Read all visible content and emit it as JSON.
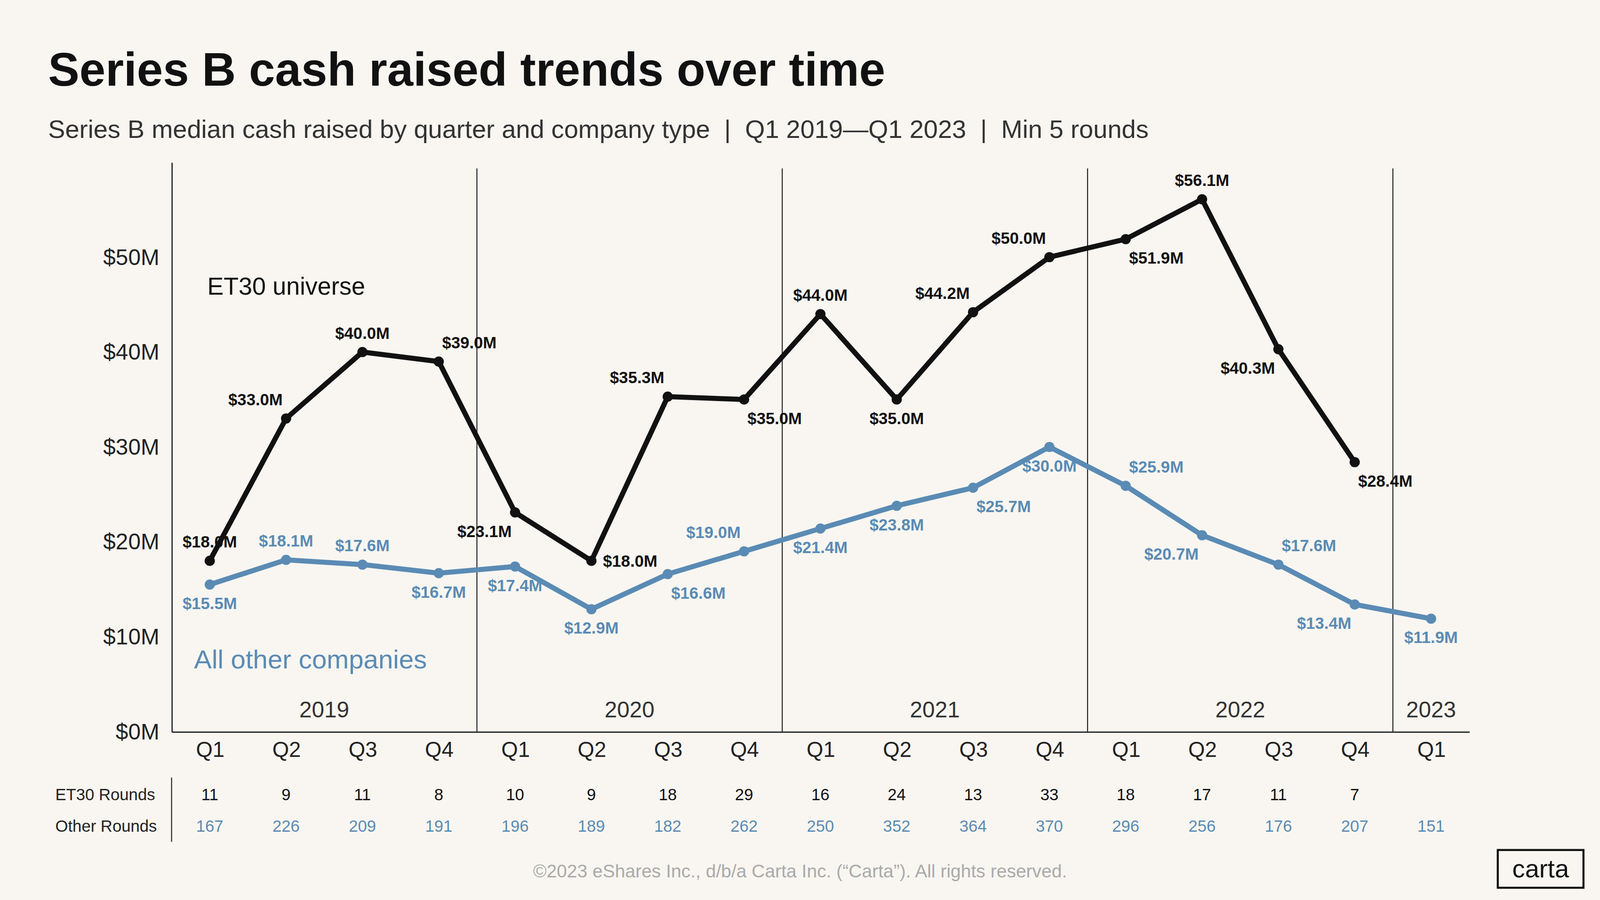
{
  "chart_data": {
    "type": "line",
    "title": "Series B cash raised trends over time",
    "subtitle": "Series B median cash raised by quarter and company type  |  Q1 2019—Q1 2023  |  Min 5 rounds",
    "categories": [
      "Q1",
      "Q2",
      "Q3",
      "Q4",
      "Q1",
      "Q2",
      "Q3",
      "Q4",
      "Q1",
      "Q2",
      "Q3",
      "Q4",
      "Q1",
      "Q2",
      "Q3",
      "Q4",
      "Q1"
    ],
    "groups": [
      {
        "label": "2019",
        "count": 4
      },
      {
        "label": "2020",
        "count": 4
      },
      {
        "label": "2021",
        "count": 4
      },
      {
        "label": "2022",
        "count": 4
      },
      {
        "label": "2023",
        "count": 1
      }
    ],
    "ylim": [
      0,
      60
    ],
    "yticks": [
      {
        "value": 0,
        "label": "$0M"
      },
      {
        "value": 10,
        "label": "$10M"
      },
      {
        "value": 20,
        "label": "$20M"
      },
      {
        "value": 30,
        "label": "$30M"
      },
      {
        "value": 40,
        "label": "$40M"
      },
      {
        "value": 50,
        "label": "$50M"
      }
    ],
    "grid": false,
    "data_labels": true,
    "series": [
      {
        "name": "ET30 universe",
        "color": "#111111",
        "values": [
          18.0,
          33.0,
          40.0,
          39.0,
          23.1,
          18.0,
          35.3,
          35.0,
          44.0,
          35.0,
          44.2,
          50.0,
          51.9,
          56.1,
          40.3,
          28.4,
          null
        ],
        "value_labels": [
          "$18.0M",
          "$33.0M",
          "$40.0M",
          "$39.0M",
          "$23.1M",
          "$18.0M",
          "$35.3M",
          "$35.0M",
          "$44.0M",
          "$35.0M",
          "$44.2M",
          "$50.0M",
          "$51.9M",
          "$56.1M",
          "$40.3M",
          "$28.4M",
          null
        ]
      },
      {
        "name": "All other companies",
        "color": "#5a8bb4",
        "values": [
          15.5,
          18.1,
          17.6,
          16.7,
          17.4,
          12.9,
          16.6,
          19.0,
          21.4,
          23.8,
          25.7,
          30.0,
          25.9,
          20.7,
          17.6,
          13.4,
          11.9
        ],
        "value_labels": [
          "$15.5M",
          "$18.1M",
          "$17.6M",
          "$16.7M",
          "$17.4M",
          "$12.9M",
          "$16.6M",
          "$19.0M",
          "$21.4M",
          "$23.8M",
          "$25.7M",
          "$30.0M",
          "$25.9M",
          "$20.7M",
          "$17.6M",
          "$13.4M",
          "$11.9M"
        ]
      }
    ],
    "rounds": [
      {
        "label": "ET30 Rounds",
        "values": [
          11,
          9,
          11,
          8,
          10,
          9,
          18,
          29,
          16,
          24,
          13,
          33,
          18,
          17,
          11,
          7,
          null
        ]
      },
      {
        "label": "Other Rounds",
        "values": [
          167,
          226,
          209,
          191,
          196,
          189,
          182,
          262,
          250,
          352,
          364,
          370,
          296,
          256,
          176,
          207,
          151
        ]
      }
    ]
  },
  "footer": "©2023 eShares Inc., d/b/a Carta Inc. (“Carta”). All rights reserved.",
  "logo": "carta"
}
